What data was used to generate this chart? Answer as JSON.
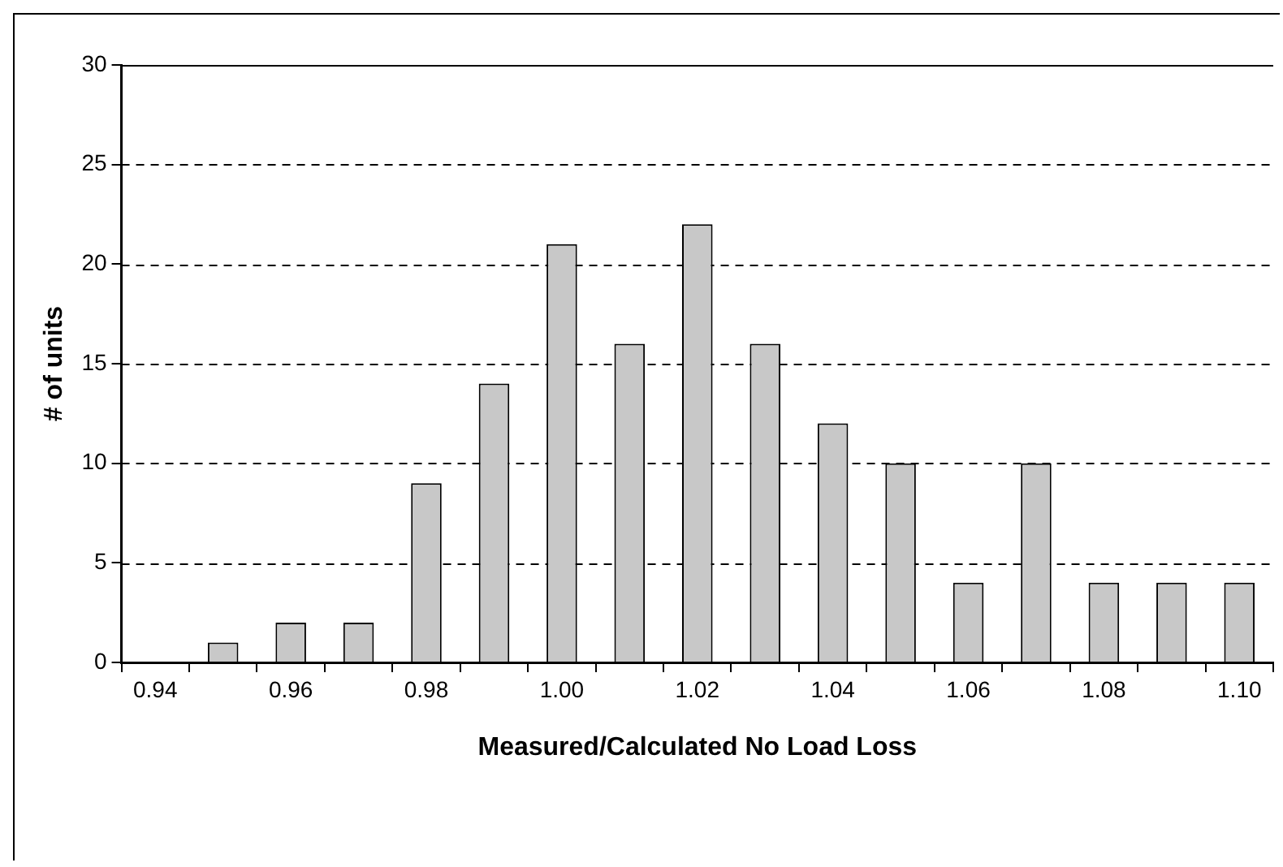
{
  "chart_data": {
    "type": "bar",
    "xlabel": "Measured/Calculated No Load Loss",
    "ylabel": "# of units",
    "categories": [
      "0.94",
      null,
      "0.96",
      null,
      "0.98",
      null,
      "1.00",
      null,
      "1.02",
      null,
      "1.04",
      null,
      "1.06",
      null,
      "1.08",
      null,
      "1.10"
    ],
    "values": [
      0,
      1,
      2,
      2,
      9,
      14,
      21,
      16,
      22,
      16,
      12,
      10,
      4,
      10,
      4,
      4,
      4
    ],
    "color": "#c8c8c8",
    "ylim": [
      0,
      30
    ],
    "yticks": [
      0,
      5,
      10,
      15,
      20,
      25,
      30
    ],
    "grid": "y",
    "legend": false
  }
}
